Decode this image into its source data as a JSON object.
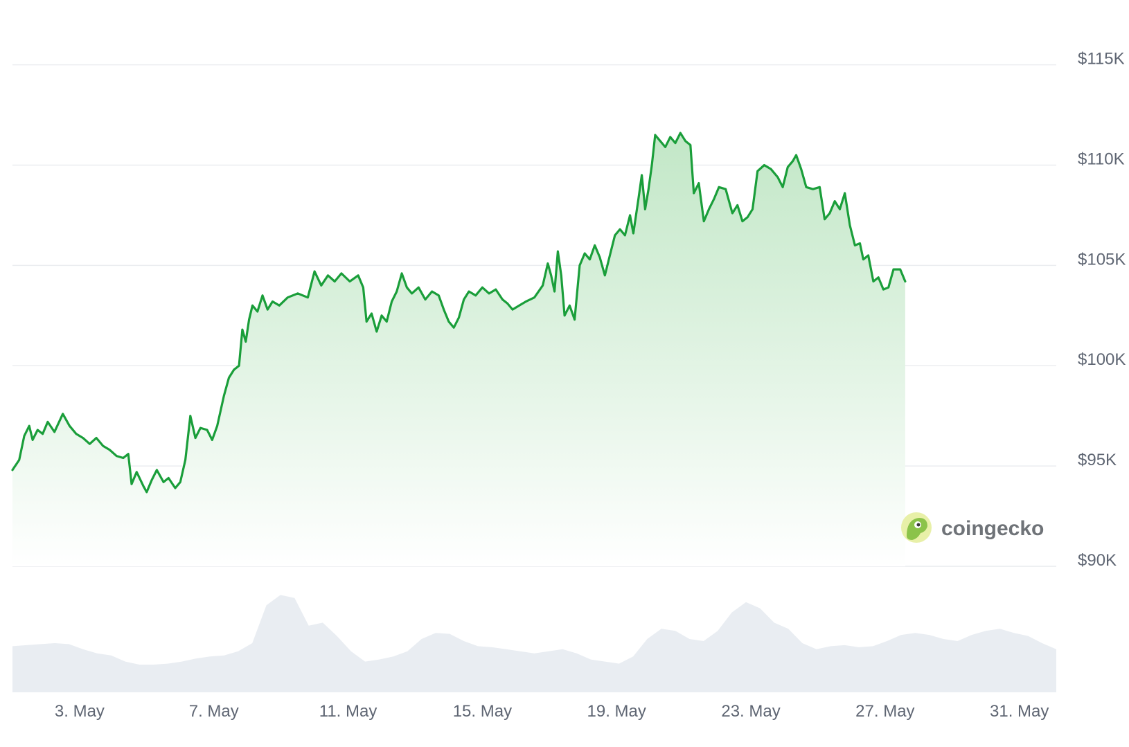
{
  "chart_data": {
    "type": "area",
    "title": "",
    "xlabel": "",
    "ylabel": "",
    "x_tick_labels": [
      "3. May",
      "7. May",
      "11. May",
      "15. May",
      "19. May",
      "23. May",
      "27. May",
      "31. May"
    ],
    "y_tick_labels": [
      "$115K",
      "$110K",
      "$105K",
      "$100K",
      "$95K",
      "$90K"
    ],
    "y_tick_values": [
      115000,
      110000,
      105000,
      100000,
      95000,
      90000
    ],
    "ylim": [
      90000,
      115400
    ],
    "xlim_days": [
      1,
      32.1
    ],
    "grid": true,
    "colors": {
      "line": "#1a9e3a",
      "area_top": "#b7e4be",
      "volume": "#e9edf2",
      "grid": "#ebedf0",
      "tick_text": "#5f6673"
    },
    "series": [
      {
        "points": [
          [
            "May 1",
            94800
          ],
          [
            "May 1.2",
            95300
          ],
          [
            "May 1.35",
            96500
          ],
          [
            "May 1.5",
            97000
          ],
          [
            "May 1.6",
            96300
          ],
          [
            "May 1.75",
            96800
          ],
          [
            "May 1.9",
            96600
          ],
          [
            "May 2.05",
            97200
          ],
          [
            "May 2.25",
            96700
          ],
          [
            "May 2.5",
            97600
          ],
          [
            "May 2.7",
            97000
          ],
          [
            "May 2.9",
            96600
          ],
          [
            "May 3.1",
            96400
          ],
          [
            "May 3.3",
            96100
          ],
          [
            "May 3.5",
            96400
          ],
          [
            "May 3.7",
            96000
          ],
          [
            "May 3.9",
            95800
          ],
          [
            "May 4.1",
            95500
          ],
          [
            "May 4.3",
            95400
          ],
          [
            "May 4.45",
            95600
          ],
          [
            "May 4.55",
            94100
          ],
          [
            "May 4.7",
            94700
          ],
          [
            "May 4.9",
            94000
          ],
          [
            "May 5.0",
            93700
          ],
          [
            "May 5.15",
            94300
          ],
          [
            "May 5.3",
            94800
          ],
          [
            "May 5.5",
            94200
          ],
          [
            "May 5.65",
            94400
          ],
          [
            "May 5.85",
            93900
          ],
          [
            "May 6.0",
            94200
          ],
          [
            "May 6.15",
            95300
          ],
          [
            "May 6.3",
            97500
          ],
          [
            "May 6.45",
            96400
          ],
          [
            "May 6.6",
            96900
          ],
          [
            "May 6.8",
            96800
          ],
          [
            "May 6.95",
            96300
          ],
          [
            "May 7.1",
            97000
          ],
          [
            "May 7.3",
            98500
          ],
          [
            "May 7.45",
            99400
          ],
          [
            "May 7.6",
            99800
          ],
          [
            "May 7.75",
            100000
          ],
          [
            "May 7.85",
            101800
          ],
          [
            "May 7.95",
            101200
          ],
          [
            "May 8.05",
            102300
          ],
          [
            "May 8.15",
            103000
          ],
          [
            "May 8.3",
            102700
          ],
          [
            "May 8.45",
            103500
          ],
          [
            "May 8.6",
            102800
          ],
          [
            "May 8.75",
            103200
          ],
          [
            "May 8.95",
            103000
          ],
          [
            "May 9.2",
            103400
          ],
          [
            "May 9.5",
            103600
          ],
          [
            "May 9.8",
            103400
          ],
          [
            "May 10.0",
            104700
          ],
          [
            "May 10.2",
            104000
          ],
          [
            "May 10.4",
            104500
          ],
          [
            "May 10.6",
            104200
          ],
          [
            "May 10.8",
            104600
          ],
          [
            "May 11.05",
            104200
          ],
          [
            "May 11.3",
            104500
          ],
          [
            "May 11.45",
            103900
          ],
          [
            "May 11.55",
            102200
          ],
          [
            "May 11.7",
            102600
          ],
          [
            "May 11.85",
            101700
          ],
          [
            "May 12.0",
            102500
          ],
          [
            "May 12.15",
            102200
          ],
          [
            "May 12.3",
            103200
          ],
          [
            "May 12.45",
            103700
          ],
          [
            "May 12.6",
            104600
          ],
          [
            "May 12.75",
            103900
          ],
          [
            "May 12.9",
            103600
          ],
          [
            "May 13.1",
            103900
          ],
          [
            "May 13.3",
            103300
          ],
          [
            "May 13.5",
            103700
          ],
          [
            "May 13.7",
            103500
          ],
          [
            "May 13.85",
            102800
          ],
          [
            "May 14.0",
            102200
          ],
          [
            "May 14.15",
            101900
          ],
          [
            "May 14.3",
            102400
          ],
          [
            "May 14.45",
            103300
          ],
          [
            "May 14.6",
            103700
          ],
          [
            "May 14.8",
            103500
          ],
          [
            "May 15.0",
            103900
          ],
          [
            "May 15.2",
            103600
          ],
          [
            "May 15.4",
            103800
          ],
          [
            "May 15.6",
            103300
          ],
          [
            "May 15.75",
            103100
          ],
          [
            "May 15.9",
            102800
          ],
          [
            "May 16.1",
            103000
          ],
          [
            "May 16.3",
            103200
          ],
          [
            "May 16.55",
            103400
          ],
          [
            "May 16.8",
            104000
          ],
          [
            "May 16.95",
            105100
          ],
          [
            "May 17.05",
            104500
          ],
          [
            "May 17.15",
            103700
          ],
          [
            "May 17.25",
            105700
          ],
          [
            "May 17.35",
            104500
          ],
          [
            "May 17.45",
            102500
          ],
          [
            "May 17.6",
            103000
          ],
          [
            "May 17.75",
            102300
          ],
          [
            "May 17.9",
            105000
          ],
          [
            "May 18.05",
            105600
          ],
          [
            "May 18.2",
            105300
          ],
          [
            "May 18.35",
            106000
          ],
          [
            "May 18.5",
            105400
          ],
          [
            "May 18.65",
            104500
          ],
          [
            "May 18.8",
            105500
          ],
          [
            "May 18.95",
            106500
          ],
          [
            "May 19.1",
            106800
          ],
          [
            "May 19.25",
            106500
          ],
          [
            "May 19.4",
            107500
          ],
          [
            "May 19.5",
            106600
          ],
          [
            "May 19.65",
            108300
          ],
          [
            "May 19.75",
            109500
          ],
          [
            "May 19.85",
            107800
          ],
          [
            "May 19.95",
            108800
          ],
          [
            "May 20.05",
            110000
          ],
          [
            "May 20.15",
            111500
          ],
          [
            "May 20.3",
            111200
          ],
          [
            "May 20.45",
            110900
          ],
          [
            "May 20.6",
            111400
          ],
          [
            "May 20.75",
            111100
          ],
          [
            "May 20.9",
            111600
          ],
          [
            "May 21.05",
            111200
          ],
          [
            "May 21.2",
            111000
          ],
          [
            "May 21.3",
            108600
          ],
          [
            "May 21.45",
            109100
          ],
          [
            "May 21.6",
            107200
          ],
          [
            "May 21.75",
            107800
          ],
          [
            "May 21.9",
            108300
          ],
          [
            "May 22.05",
            108900
          ],
          [
            "May 22.25",
            108800
          ],
          [
            "May 22.45",
            107600
          ],
          [
            "May 22.6",
            108000
          ],
          [
            "May 22.75",
            107200
          ],
          [
            "May 22.9",
            107400
          ],
          [
            "May 23.05",
            107800
          ],
          [
            "May 23.2",
            109700
          ],
          [
            "May 23.4",
            110000
          ],
          [
            "May 23.6",
            109800
          ],
          [
            "May 23.8",
            109400
          ],
          [
            "May 23.95",
            108900
          ],
          [
            "May 24.1",
            109900
          ],
          [
            "May 24.25",
            110200
          ],
          [
            "May 24.35",
            110500
          ],
          [
            "May 24.5",
            109800
          ],
          [
            "May 24.65",
            108900
          ],
          [
            "May 24.85",
            108800
          ],
          [
            "May 25.05",
            108900
          ],
          [
            "May 25.2",
            107300
          ],
          [
            "May 25.35",
            107600
          ],
          [
            "May 25.5",
            108200
          ],
          [
            "May 25.65",
            107800
          ],
          [
            "May 25.8",
            108600
          ],
          [
            "May 25.95",
            107000
          ],
          [
            "May 26.1",
            106000
          ],
          [
            "May 26.25",
            106100
          ],
          [
            "May 26.35",
            105300
          ],
          [
            "May 26.5",
            105500
          ],
          [
            "May 26.65",
            104200
          ],
          [
            "May 26.8",
            104400
          ],
          [
            "May 26.95",
            103800
          ],
          [
            "May 27.1",
            103900
          ],
          [
            "May 27.25",
            104800
          ],
          [
            "May 27.45",
            104800
          ],
          [
            "May 27.6",
            104200
          ]
        ]
      }
    ],
    "volume_relative": [
      0.45,
      0.46,
      0.47,
      0.48,
      0.47,
      0.42,
      0.38,
      0.36,
      0.3,
      0.27,
      0.27,
      0.28,
      0.3,
      0.33,
      0.35,
      0.36,
      0.4,
      0.48,
      0.85,
      0.95,
      0.92,
      0.65,
      0.68,
      0.55,
      0.4,
      0.3,
      0.32,
      0.35,
      0.4,
      0.52,
      0.58,
      0.57,
      0.5,
      0.45,
      0.44,
      0.42,
      0.4,
      0.38,
      0.4,
      0.42,
      0.38,
      0.32,
      0.3,
      0.28,
      0.35,
      0.52,
      0.62,
      0.6,
      0.52,
      0.5,
      0.6,
      0.78,
      0.88,
      0.82,
      0.68,
      0.62,
      0.48,
      0.42,
      0.45,
      0.46,
      0.44,
      0.45,
      0.5,
      0.56,
      0.58,
      0.56,
      0.52,
      0.5,
      0.56,
      0.6,
      0.62,
      0.58,
      0.55,
      0.48,
      0.42
    ],
    "watermark": "coingecko"
  }
}
